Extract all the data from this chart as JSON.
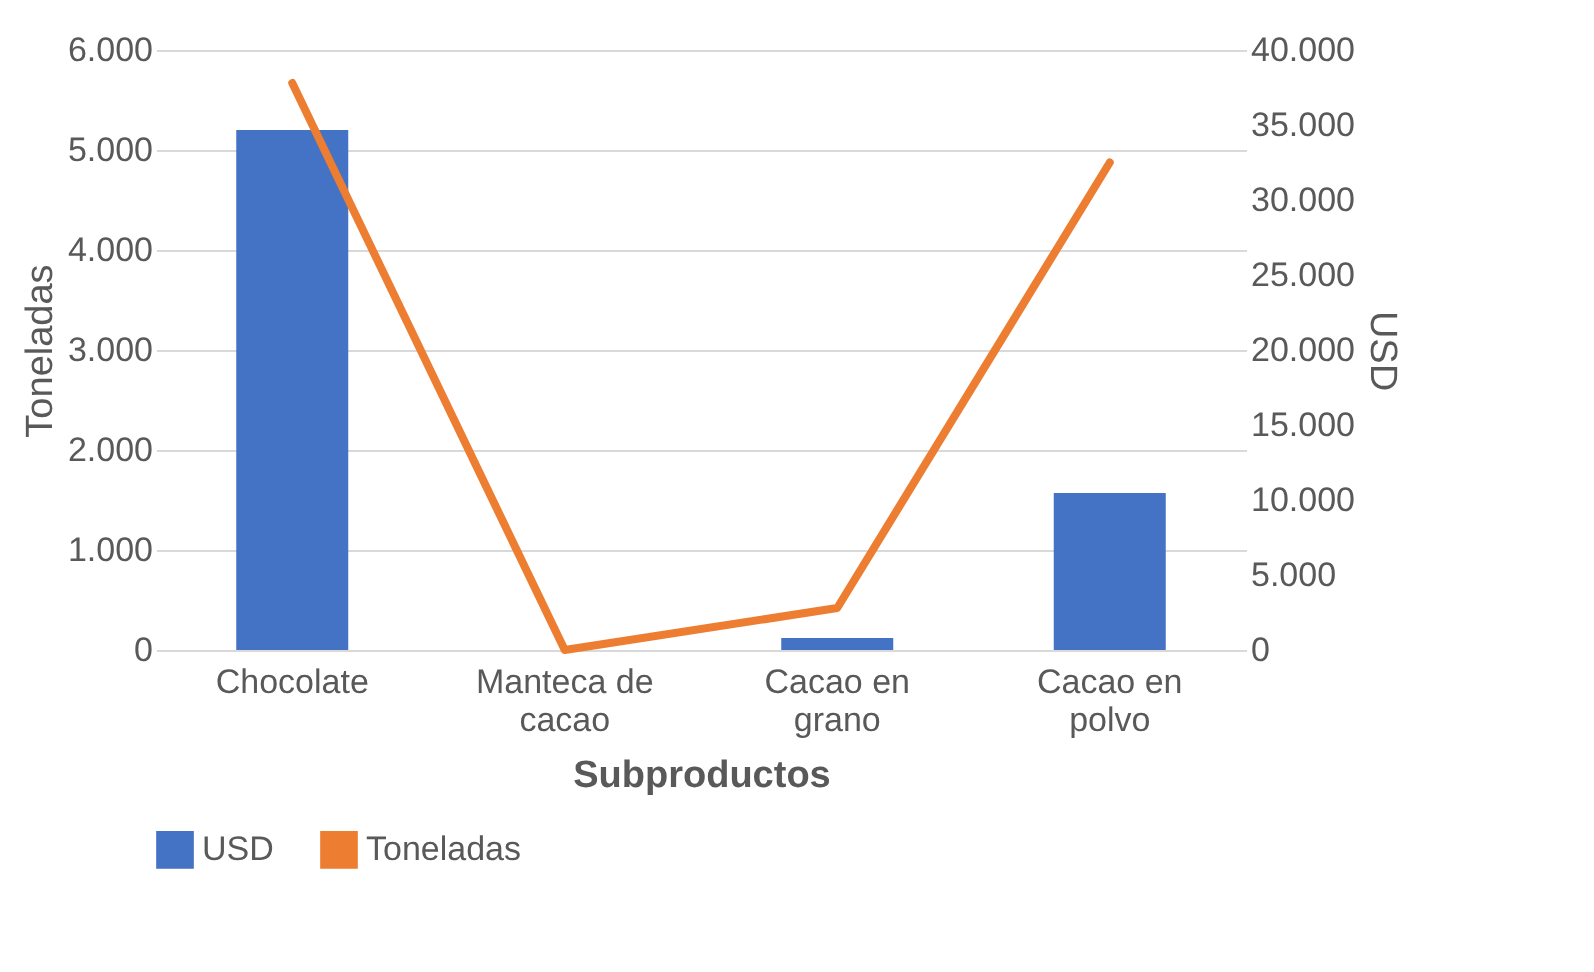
{
  "chart_data": {
    "type": "bar",
    "xlabel": "Subproductos",
    "ylabel": "Toneladas",
    "y2label": "USD",
    "categories": [
      "Chocolate",
      "Manteca de cacao",
      "Cacao en grano",
      "Cacao en polvo"
    ],
    "series": [
      {
        "name": "USD",
        "color": "#4472c4",
        "values": [
          5200,
          0,
          120,
          1570
        ]
      },
      {
        "name": "Toneladas",
        "type": "line",
        "axis": "y2",
        "color": "#ed7d31",
        "values": [
          37800,
          0,
          2800,
          32500
        ]
      }
    ],
    "ylim": [
      0,
      6000
    ],
    "yticks": [
      {
        "value": 0,
        "label": "0"
      },
      {
        "value": 1000,
        "label": "1.000"
      },
      {
        "value": 2000,
        "label": "2.000"
      },
      {
        "value": 3000,
        "label": "3.000"
      },
      {
        "value": 4000,
        "label": "4.000"
      },
      {
        "value": 5000,
        "label": "5.000"
      },
      {
        "value": 6000,
        "label": "6.000"
      }
    ],
    "y2lim": [
      0,
      40000
    ],
    "y2ticks": [
      {
        "value": 0,
        "label": "0"
      },
      {
        "value": 5000,
        "label": "5.000"
      },
      {
        "value": 10000,
        "label": "10.000"
      },
      {
        "value": 15000,
        "label": "15.000"
      },
      {
        "value": 20000,
        "label": "20.000"
      },
      {
        "value": 25000,
        "label": "25.000"
      },
      {
        "value": 30000,
        "label": "30.000"
      },
      {
        "value": 35000,
        "label": "35.000"
      },
      {
        "value": 40000,
        "label": "40.000"
      }
    ],
    "grid": "y",
    "legend": "bottom"
  }
}
